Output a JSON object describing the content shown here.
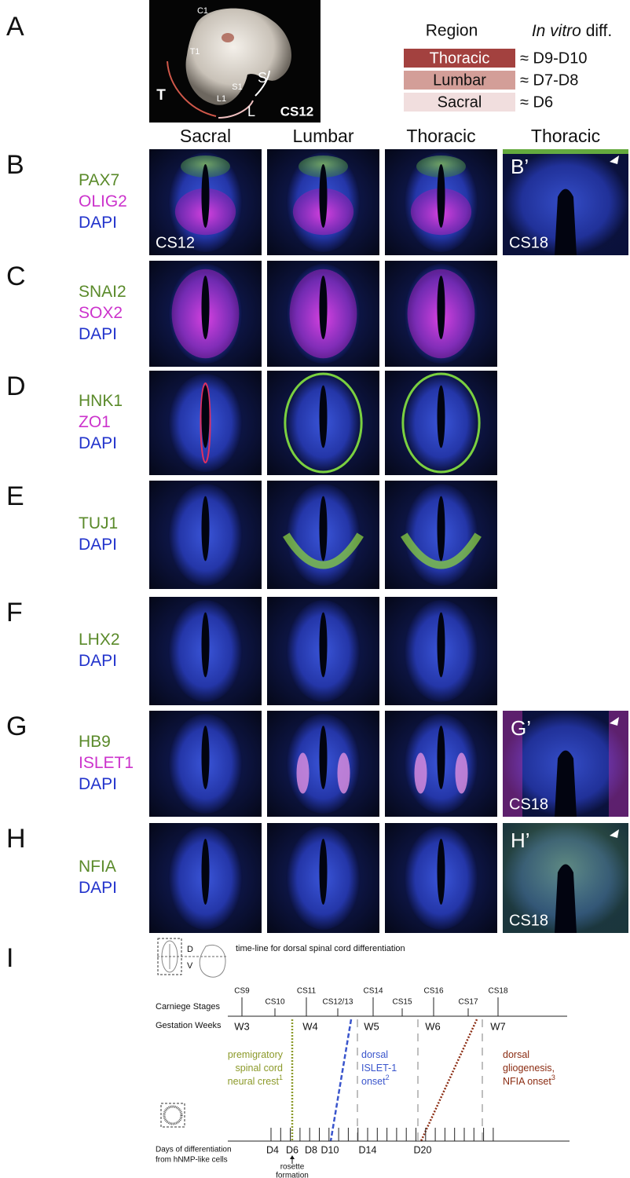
{
  "panel_a": {
    "letter": "A",
    "embryo_labels": [
      "C1",
      "T1",
      "S1",
      "L1",
      "S",
      "T",
      "L"
    ],
    "stage": "CS12",
    "table": {
      "headers": [
        "Region",
        "In vitro",
        "diff."
      ],
      "rows": [
        {
          "region": "Thoracic",
          "diff": "≈ D9-D10",
          "color": "#a3413f"
        },
        {
          "region": "Lumbar",
          "diff": "≈ D7-D8",
          "color": "#d39e98"
        },
        {
          "region": "Sacral",
          "diff": "≈ D6",
          "color": "#f1dede"
        }
      ]
    }
  },
  "column_headers": [
    "Sacral",
    "Lumbar",
    "Thoracic",
    "Thoracic"
  ],
  "rows": [
    {
      "letter": "B",
      "markers": [
        {
          "text": "PAX7",
          "color": "#5a8a2a"
        },
        {
          "text": "OLIG2",
          "color": "#cc33cc"
        },
        {
          "text": "DAPI",
          "color": "#2233cc"
        }
      ],
      "stage_label": "CS12",
      "inset": {
        "letter": "B’",
        "stage": "CS18"
      }
    },
    {
      "letter": "C",
      "markers": [
        {
          "text": "SNAI2",
          "color": "#5a8a2a"
        },
        {
          "text": "SOX2",
          "color": "#cc33cc"
        },
        {
          "text": "DAPI",
          "color": "#2233cc"
        }
      ]
    },
    {
      "letter": "D",
      "markers": [
        {
          "text": "HNK1",
          "color": "#5a8a2a"
        },
        {
          "text": "ZO1",
          "color": "#cc33cc"
        },
        {
          "text": "DAPI",
          "color": "#2233cc"
        }
      ]
    },
    {
      "letter": "E",
      "markers": [
        {
          "text": "TUJ1",
          "color": "#5a8a2a"
        },
        {
          "text": "DAPI",
          "color": "#2233cc"
        }
      ]
    },
    {
      "letter": "F",
      "markers": [
        {
          "text": "LHX2",
          "color": "#5a8a2a"
        },
        {
          "text": "DAPI",
          "color": "#2233cc"
        }
      ]
    },
    {
      "letter": "G",
      "markers": [
        {
          "text": "HB9",
          "color": "#5a8a2a"
        },
        {
          "text": "ISLET1",
          "color": "#cc33cc"
        },
        {
          "text": "DAPI",
          "color": "#2233cc"
        }
      ],
      "inset": {
        "letter": "G’",
        "stage": "CS18"
      }
    },
    {
      "letter": "H",
      "markers": [
        {
          "text": "NFIA",
          "color": "#5a8a2a"
        },
        {
          "text": "DAPI",
          "color": "#2233cc"
        }
      ],
      "inset": {
        "letter": "H’",
        "stage": "CS18"
      }
    }
  ],
  "panel_i": {
    "letter": "I",
    "title": "time-line for dorsal spinal cord differentiation",
    "dorsal": "D",
    "ventral": "V",
    "stages_label": "Carniege Stages",
    "stages": [
      "CS9",
      "CS10",
      "CS11",
      "CS12/13",
      "CS14",
      "CS15",
      "CS16",
      "CS17",
      "CS18"
    ],
    "weeks_label": "Gestation Weeks",
    "weeks": [
      "W3",
      "W4",
      "W5",
      "W6",
      "W7"
    ],
    "annotations": [
      {
        "lines": [
          "premigratory",
          "spinal cord",
          "neural crest"
        ],
        "ref": "1",
        "color": "#8c9a2a"
      },
      {
        "lines": [
          "dorsal",
          "ISLET-1",
          "onset"
        ],
        "ref": "2",
        "color": "#3a55cc"
      },
      {
        "lines": [
          "dorsal",
          "gliogenesis,",
          "NFIA onset"
        ],
        "ref": "3",
        "color": "#8b2c12"
      }
    ],
    "days_label": [
      "Days of differentiation",
      "from hNMP-like cells"
    ],
    "days": [
      "D4",
      "D6",
      "D8",
      "D10",
      "D14",
      "D20"
    ],
    "rosette": [
      "rosette",
      "formation"
    ]
  }
}
